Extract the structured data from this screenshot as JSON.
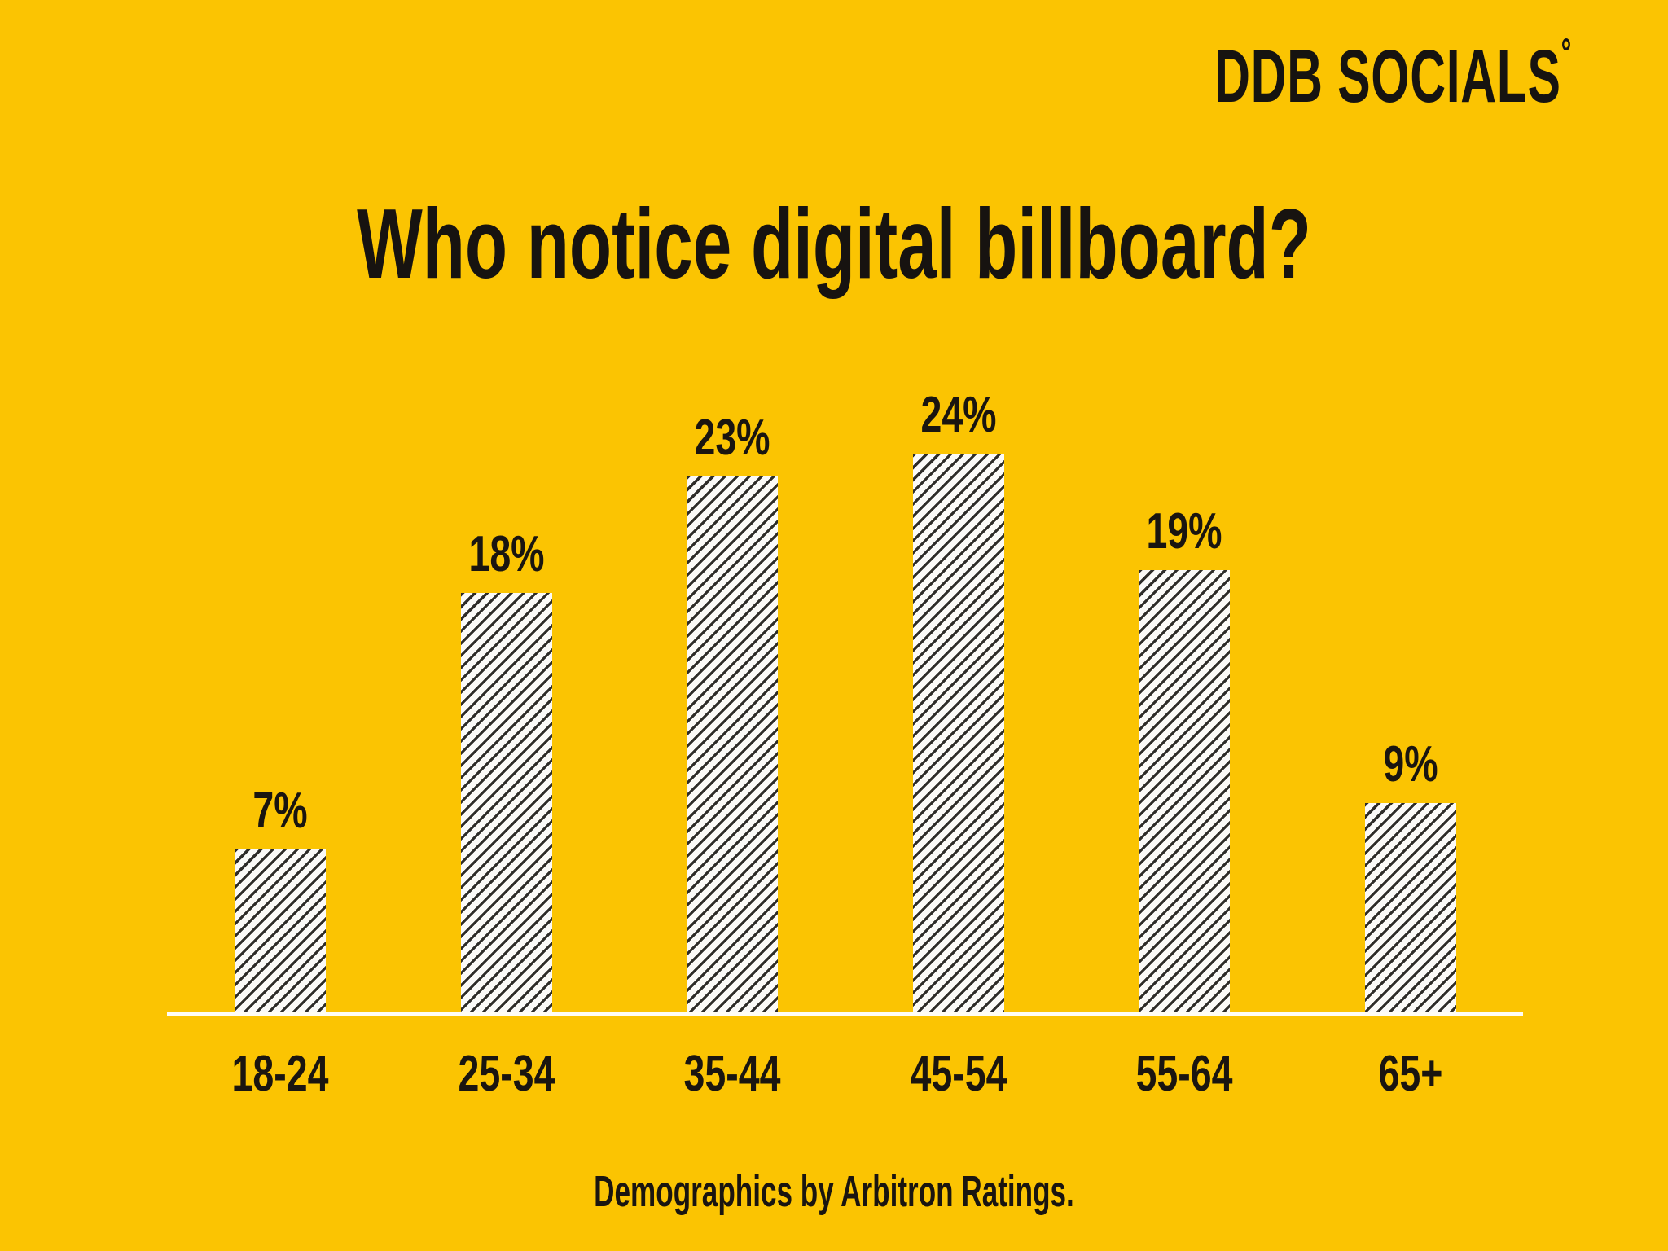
{
  "page": {
    "background_color": "#FBC402",
    "text_color": "#1A1510"
  },
  "brand": {
    "name": "DDB SOCIALS",
    "degree_mark": "°"
  },
  "chart_data": {
    "type": "bar",
    "title": "Who notice digital billboard?",
    "categories": [
      "18-24",
      "25-34",
      "35-44",
      "45-54",
      "55-64",
      "65+"
    ],
    "values": [
      7,
      18,
      23,
      24,
      19,
      9
    ],
    "value_labels": [
      "7%",
      "18%",
      "23%",
      "24%",
      "19%",
      "9%"
    ],
    "unit": "%",
    "xlabel": "",
    "ylabel": "",
    "ylim": [
      0,
      26
    ],
    "grid": false,
    "legend": false,
    "bar_style": {
      "fill": "hatched",
      "hatch": "diagonal-forward",
      "stripe_color": "#2E2C28",
      "base_color": "#FBFAF7"
    },
    "baseline_color": "#FFFDF4",
    "source_note": "Demographics by Arbitron Ratings."
  },
  "footer": {
    "caption": "Demographics by Arbitron Ratings."
  }
}
